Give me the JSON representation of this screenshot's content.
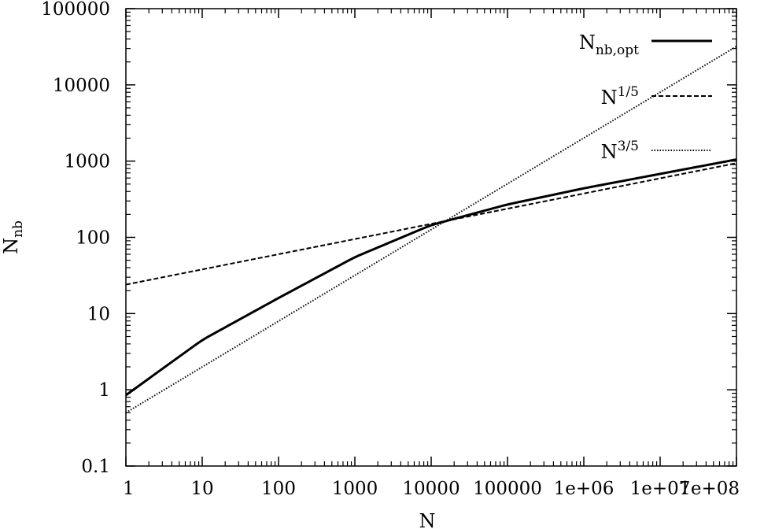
{
  "chart_data": {
    "type": "line",
    "title": "",
    "xlabel": "N",
    "ylabel": {
      "main": "N",
      "sub": "nb"
    },
    "x_scale": "log",
    "y_scale": "log",
    "xlim": [
      1,
      100000000
    ],
    "ylim": [
      0.1,
      100000
    ],
    "grid": false,
    "legend_position": "top-right",
    "x_ticks": [
      {
        "value": 1,
        "label": "1"
      },
      {
        "value": 10,
        "label": "10"
      },
      {
        "value": 100,
        "label": "100"
      },
      {
        "value": 1000,
        "label": "1000"
      },
      {
        "value": 10000,
        "label": "10000"
      },
      {
        "value": 100000,
        "label": "100000"
      },
      {
        "value": 1000000,
        "label": "1e+06"
      },
      {
        "value": 10000000,
        "label": "1e+07"
      },
      {
        "value": 100000000,
        "label": "1e+08"
      }
    ],
    "y_ticks": [
      {
        "value": 0.1,
        "label": "0.1"
      },
      {
        "value": 1,
        "label": "1"
      },
      {
        "value": 10,
        "label": "10"
      },
      {
        "value": 100,
        "label": "100"
      },
      {
        "value": 1000,
        "label": "1000"
      },
      {
        "value": 10000,
        "label": "10000"
      },
      {
        "value": 100000,
        "label": "100000"
      }
    ],
    "series": [
      {
        "name": {
          "main": "N",
          "sub": "nb,opt"
        },
        "style": "solid",
        "x": [
          1,
          10,
          100,
          1000,
          10000,
          100000,
          1000000,
          10000000,
          100000000
        ],
        "y": [
          0.85,
          4.5,
          16,
          55,
          145,
          270,
          440,
          680,
          1050
        ]
      },
      {
        "name": {
          "main": "N",
          "sup": "1/5"
        },
        "style": "dashed",
        "x": [
          1,
          100000000
        ],
        "y": [
          24,
          940
        ]
      },
      {
        "name": {
          "main": "N",
          "sup": "3/5"
        },
        "style": "dotted",
        "x": [
          1,
          100000000
        ],
        "y": [
          0.5,
          32000
        ]
      }
    ]
  }
}
